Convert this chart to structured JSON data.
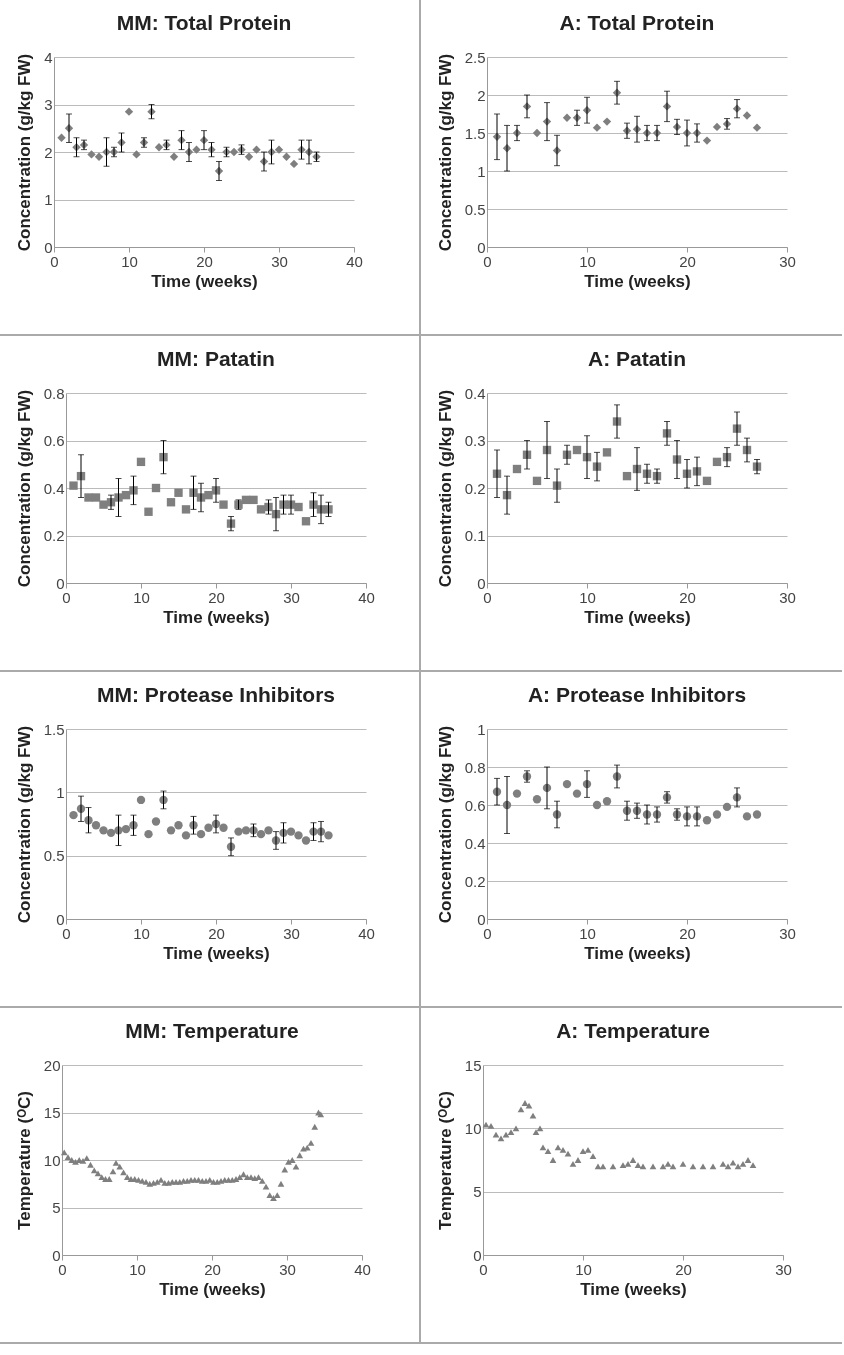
{
  "chart_data": [
    {
      "type": "scatter",
      "title": "MM: Total Protein",
      "xlabel": "Time (weeks)",
      "ylabel": "Concentration (g/kg FW)",
      "marker": "diamond",
      "grid": "y",
      "xlim": [
        0,
        40
      ],
      "xticks": [
        0,
        10,
        20,
        30,
        40
      ],
      "ylim": [
        0,
        4
      ],
      "yticks": [
        0,
        1,
        2,
        3,
        4
      ],
      "x": [
        1,
        2,
        3,
        4,
        5,
        6,
        7,
        8,
        9,
        10,
        11,
        12,
        13,
        14,
        15,
        16,
        17,
        18,
        19,
        20,
        21,
        22,
        23,
        24,
        25,
        26,
        27,
        28,
        29,
        30,
        31,
        32,
        33,
        34,
        35
      ],
      "series": [
        {
          "color": "#7f7f7f",
          "values": [
            2.3,
            2.5,
            2.1,
            2.15,
            1.95,
            1.9,
            2.0,
            2.0,
            2.2,
            2.85,
            1.95,
            2.2,
            2.85,
            2.1,
            2.15,
            1.9,
            2.25,
            2.0,
            2.05,
            2.25,
            2.05,
            1.6,
            2.0,
            2.0,
            2.05,
            1.9,
            2.05,
            1.8,
            2.0,
            2.05,
            1.9,
            1.75,
            2.05,
            2.0,
            1.9
          ],
          "errors": [
            null,
            0.3,
            0.2,
            0.1,
            null,
            null,
            0.3,
            0.1,
            0.2,
            null,
            null,
            0.1,
            0.15,
            null,
            0.1,
            null,
            0.2,
            0.2,
            null,
            0.2,
            0.15,
            0.2,
            0.1,
            null,
            0.1,
            null,
            null,
            0.2,
            0.25,
            null,
            null,
            null,
            0.2,
            0.25,
            0.1
          ]
        }
      ]
    },
    {
      "type": "scatter",
      "title": "A: Total Protein",
      "xlabel": "Time (weeks)",
      "ylabel": "Concentration (g/kg FW)",
      "marker": "diamond",
      "grid": "y",
      "xlim": [
        0,
        30
      ],
      "xticks": [
        0,
        10,
        20,
        30
      ],
      "ylim": [
        0,
        2.5
      ],
      "yticks": [
        0,
        0.5,
        1,
        1.5,
        2,
        2.5
      ],
      "x": [
        1,
        2,
        3,
        4,
        5,
        6,
        7,
        8,
        9,
        10,
        11,
        12,
        13,
        14,
        15,
        16,
        17,
        18,
        19,
        20,
        21,
        22,
        23,
        24,
        25,
        26,
        27
      ],
      "series": [
        {
          "color": "#7f7f7f",
          "values": [
            1.45,
            1.3,
            1.5,
            1.85,
            1.5,
            1.65,
            1.27,
            1.7,
            1.7,
            1.8,
            1.57,
            1.65,
            2.03,
            1.53,
            1.55,
            1.5,
            1.5,
            1.85,
            1.58,
            1.5,
            1.5,
            1.4,
            1.58,
            1.62,
            1.82,
            1.73,
            1.57
          ],
          "errors": [
            0.3,
            0.3,
            0.1,
            0.15,
            null,
            0.25,
            0.2,
            null,
            0.1,
            0.17,
            null,
            null,
            0.15,
            0.1,
            0.17,
            0.1,
            0.1,
            0.2,
            0.1,
            0.17,
            0.12,
            null,
            null,
            0.07,
            0.12,
            null,
            null
          ]
        }
      ]
    },
    {
      "type": "scatter",
      "title": "MM: Patatin",
      "xlabel": "Time (weeks)",
      "ylabel": "Concentration (g/kg FW)",
      "marker": "square",
      "grid": "y",
      "xlim": [
        0,
        40
      ],
      "xticks": [
        0,
        10,
        20,
        30,
        40
      ],
      "ylim": [
        0,
        0.8
      ],
      "yticks": [
        0,
        0.2,
        0.4,
        0.6,
        0.8
      ],
      "x": [
        1,
        2,
        3,
        4,
        5,
        6,
        7,
        8,
        9,
        10,
        11,
        12,
        13,
        14,
        15,
        16,
        17,
        18,
        19,
        20,
        21,
        22,
        23,
        24,
        25,
        26,
        27,
        28,
        29,
        30,
        31,
        32,
        33,
        34,
        35
      ],
      "series": [
        {
          "color": "#7f7f7f",
          "values": [
            0.41,
            0.45,
            0.36,
            0.36,
            0.33,
            0.34,
            0.36,
            0.37,
            0.39,
            0.51,
            0.3,
            0.4,
            0.53,
            0.34,
            0.38,
            0.31,
            0.38,
            0.36,
            0.37,
            0.39,
            0.33,
            0.25,
            0.33,
            0.35,
            0.35,
            0.31,
            0.32,
            0.29,
            0.33,
            0.33,
            0.32,
            0.26,
            0.33,
            0.31,
            0.31
          ],
          "errors": [
            null,
            0.09,
            null,
            null,
            null,
            0.03,
            0.08,
            null,
            0.06,
            null,
            null,
            null,
            0.07,
            null,
            null,
            null,
            0.07,
            0.06,
            null,
            0.05,
            null,
            0.03,
            0.02,
            null,
            null,
            null,
            0.03,
            0.07,
            0.04,
            0.04,
            null,
            null,
            0.05,
            0.06,
            0.03
          ]
        }
      ]
    },
    {
      "type": "scatter",
      "title": "A: Patatin",
      "xlabel": "Time (weeks)",
      "ylabel": "Concentration (g/kg FW)",
      "marker": "square",
      "grid": "y",
      "xlim": [
        0,
        30
      ],
      "xticks": [
        0,
        10,
        20,
        30
      ],
      "ylim": [
        0,
        0.4
      ],
      "yticks": [
        0,
        0.1,
        0.2,
        0.3,
        0.4
      ],
      "x": [
        1,
        2,
        3,
        4,
        5,
        6,
        7,
        8,
        9,
        10,
        11,
        12,
        13,
        14,
        15,
        16,
        17,
        18,
        19,
        20,
        21,
        22,
        23,
        24,
        25,
        26,
        27
      ],
      "series": [
        {
          "color": "#7f7f7f",
          "values": [
            0.23,
            0.185,
            0.24,
            0.27,
            0.215,
            0.28,
            0.205,
            0.27,
            0.28,
            0.265,
            0.245,
            0.275,
            0.34,
            0.225,
            0.24,
            0.23,
            0.225,
            0.315,
            0.26,
            0.23,
            0.235,
            0.215,
            0.255,
            0.265,
            0.325,
            0.28,
            0.245
          ],
          "errors": [
            0.05,
            0.04,
            null,
            0.03,
            null,
            0.06,
            0.035,
            0.02,
            null,
            0.045,
            0.03,
            null,
            0.035,
            null,
            0.045,
            0.02,
            0.015,
            0.025,
            0.04,
            0.03,
            0.03,
            null,
            null,
            0.02,
            0.035,
            0.025,
            0.015
          ]
        }
      ]
    },
    {
      "type": "scatter",
      "title": "MM: Protease Inhibitors",
      "xlabel": "Time (weeks)",
      "ylabel": "Concentration (g/kg FW)",
      "marker": "circle",
      "grid": "y",
      "xlim": [
        0,
        40
      ],
      "xticks": [
        0,
        10,
        20,
        30,
        40
      ],
      "ylim": [
        0,
        1.5
      ],
      "yticks": [
        0,
        0.5,
        1,
        1.5
      ],
      "x": [
        1,
        2,
        3,
        4,
        5,
        6,
        7,
        8,
        9,
        10,
        11,
        12,
        13,
        14,
        15,
        16,
        17,
        18,
        19,
        20,
        21,
        22,
        23,
        24,
        25,
        26,
        27,
        28,
        29,
        30,
        31,
        32,
        33,
        34,
        35
      ],
      "series": [
        {
          "color": "#7f7f7f",
          "values": [
            0.82,
            0.87,
            0.78,
            0.74,
            0.7,
            0.68,
            0.7,
            0.71,
            0.74,
            0.94,
            0.67,
            0.77,
            0.94,
            0.7,
            0.74,
            0.66,
            0.74,
            0.67,
            0.72,
            0.75,
            0.72,
            0.57,
            0.69,
            0.7,
            0.7,
            0.67,
            0.7,
            0.62,
            0.68,
            0.69,
            0.66,
            0.62,
            0.69,
            0.69,
            0.66
          ],
          "errors": [
            null,
            0.1,
            0.1,
            null,
            null,
            null,
            0.12,
            null,
            0.08,
            null,
            null,
            null,
            0.07,
            null,
            null,
            null,
            0.07,
            null,
            null,
            0.07,
            null,
            0.07,
            null,
            null,
            0.05,
            null,
            null,
            0.07,
            0.08,
            null,
            null,
            null,
            0.07,
            0.08,
            null
          ]
        }
      ]
    },
    {
      "type": "scatter",
      "title": "A: Protease Inhibitors",
      "xlabel": "Time (weeks)",
      "ylabel": "Concentration (g/kg FW)",
      "marker": "circle",
      "grid": "y",
      "xlim": [
        0,
        30
      ],
      "xticks": [
        0,
        10,
        20,
        30
      ],
      "ylim": [
        0,
        1
      ],
      "yticks": [
        0,
        0.2,
        0.4,
        0.6,
        0.8,
        1
      ],
      "x": [
        1,
        2,
        3,
        4,
        5,
        6,
        7,
        8,
        9,
        10,
        11,
        12,
        13,
        14,
        15,
        16,
        17,
        18,
        19,
        20,
        21,
        22,
        23,
        24,
        25,
        26,
        27
      ],
      "series": [
        {
          "color": "#7f7f7f",
          "values": [
            0.67,
            0.6,
            0.66,
            0.75,
            0.63,
            0.69,
            0.55,
            0.71,
            0.66,
            0.71,
            0.6,
            0.62,
            0.75,
            0.57,
            0.57,
            0.55,
            0.55,
            0.64,
            0.55,
            0.54,
            0.54,
            0.52,
            0.55,
            0.59,
            0.64,
            0.54,
            0.55
          ],
          "errors": [
            0.07,
            0.15,
            null,
            0.03,
            null,
            0.11,
            0.07,
            null,
            null,
            0.07,
            null,
            null,
            0.06,
            0.05,
            0.04,
            0.05,
            0.04,
            0.03,
            0.03,
            0.05,
            0.05,
            null,
            null,
            null,
            0.05,
            null,
            null
          ]
        }
      ]
    },
    {
      "type": "scatter",
      "title": "MM: Temperature",
      "xlabel": "Time (weeks)",
      "ylabel": "Temperature (ᴼC)",
      "marker": "triangle",
      "grid": "y",
      "xlim": [
        0,
        40
      ],
      "xticks": [
        0,
        10,
        20,
        30,
        40
      ],
      "ylim": [
        0,
        20
      ],
      "yticks": [
        0,
        5,
        10,
        15,
        20
      ],
      "x": [
        0.3,
        0.8,
        1.3,
        1.8,
        2.3,
        2.8,
        3.3,
        3.8,
        4.3,
        4.8,
        5.3,
        5.8,
        6.3,
        6.8,
        7.2,
        7.7,
        8.2,
        8.7,
        9.2,
        9.7,
        10.2,
        10.7,
        11.2,
        11.7,
        12.2,
        12.7,
        13.2,
        13.7,
        14.2,
        14.7,
        15.2,
        15.7,
        16.2,
        16.7,
        17.2,
        17.7,
        18.2,
        18.7,
        19.2,
        19.7,
        20.2,
        20.7,
        21.2,
        21.7,
        22.2,
        22.7,
        23.2,
        23.7,
        24.2,
        24.7,
        25.2,
        25.7,
        26.2,
        26.7,
        27.2,
        27.7,
        28.2,
        28.7,
        29.2,
        29.7,
        30.2,
        30.7,
        31.2,
        31.7,
        32.2,
        32.7,
        33.2,
        33.7,
        34.2,
        34.5
      ],
      "series": [
        {
          "color": "#7f7f7f",
          "values": [
            10.8,
            10.3,
            10,
            9.8,
            10,
            9.9,
            10.2,
            9.5,
            8.9,
            8.6,
            8.2,
            8,
            8,
            8.8,
            9.7,
            9.3,
            8.7,
            8.2,
            8,
            8,
            7.9,
            7.8,
            7.7,
            7.5,
            7.6,
            7.7,
            7.9,
            7.6,
            7.6,
            7.7,
            7.7,
            7.7,
            7.8,
            7.8,
            7.9,
            7.9,
            7.9,
            7.8,
            7.8,
            7.9,
            7.7,
            7.7,
            7.8,
            7.9,
            7.9,
            7.9,
            8,
            8.2,
            8.5,
            8.2,
            8.2,
            8.1,
            8.2,
            7.8,
            7.2,
            6.3,
            6,
            6.3,
            7.5,
            9,
            9.8,
            10,
            9.3,
            10.5,
            11.2,
            11.3,
            11.8,
            13.5,
            15,
            14.8
          ]
        }
      ]
    },
    {
      "type": "scatter",
      "title": "A: Temperature",
      "xlabel": "Time (weeks)",
      "ylabel": "Temperature (ᴼC)",
      "marker": "triangle",
      "grid": "y",
      "xlim": [
        0,
        30
      ],
      "xticks": [
        0,
        10,
        20,
        30
      ],
      "ylim": [
        0,
        15
      ],
      "yticks": [
        0,
        5,
        10,
        15
      ],
      "x": [
        0.3,
        0.8,
        1.3,
        1.8,
        2.3,
        2.8,
        3.3,
        3.8,
        4.2,
        4.6,
        5,
        5.3,
        5.7,
        6,
        6.5,
        7,
        7.5,
        8,
        8.5,
        9,
        9.5,
        10,
        10.5,
        11,
        11.5,
        12,
        13,
        14,
        14.5,
        15,
        15.5,
        16,
        17,
        18,
        18.5,
        19,
        20,
        21,
        22,
        23,
        24,
        24.5,
        25,
        25.5,
        26,
        26.5,
        27
      ],
      "series": [
        {
          "color": "#7f7f7f",
          "values": [
            10.3,
            10.2,
            9.5,
            9.2,
            9.5,
            9.7,
            10,
            11.5,
            12,
            11.8,
            11,
            9.7,
            10,
            8.5,
            8.2,
            7.5,
            8.5,
            8.3,
            8,
            7.2,
            7.5,
            8.2,
            8.3,
            7.8,
            7,
            7,
            7,
            7.1,
            7.2,
            7.5,
            7.1,
            7,
            7,
            7,
            7.2,
            7,
            7.2,
            7,
            7,
            7,
            7.2,
            7,
            7.3,
            7,
            7.2,
            7.5,
            7.1
          ]
        }
      ]
    }
  ]
}
